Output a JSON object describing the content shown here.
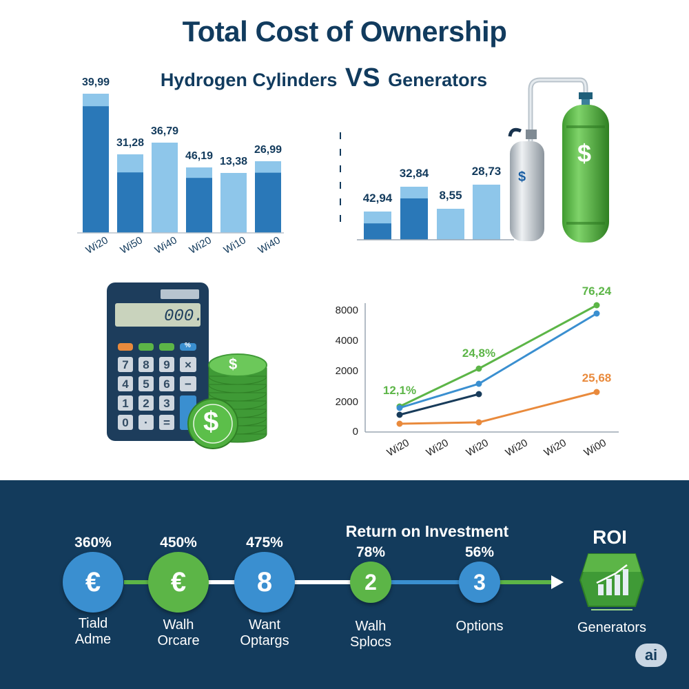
{
  "title": "Total Cost of Ownership",
  "subtitle": {
    "left": "Hydrogen Cylinders",
    "vs": "VS",
    "right": "Generators"
  },
  "colors": {
    "dark_blue": "#2a78b8",
    "light_blue": "#8ec6ea",
    "green": "#5cb547",
    "orange": "#e98a3c",
    "navy": "#133b5c",
    "line_dark": "#183b5a"
  },
  "icons": [
    "gas-cylinders-icon",
    "dollar-icon",
    "calculator-icon",
    "coin-stack-icon",
    "euro-icon",
    "chart-growth-icon"
  ],
  "calculator": {
    "display": "000.",
    "percent_key": "%"
  },
  "chart_data": [
    {
      "type": "bar",
      "categories": [
        "Wi20",
        "Wi50",
        "Wi40",
        "Wi20",
        "Wi10",
        "Wi40"
      ],
      "values": [
        39.99,
        31.28,
        36.79,
        46.19,
        13.38,
        26.99
      ],
      "data_labels": [
        "39,99",
        "31,28",
        "36,79",
        "46,19",
        "13,38",
        "26,99"
      ]
    },
    {
      "type": "bar",
      "categories": [
        "",
        "",
        "",
        ""
      ],
      "values": [
        42.94,
        32.84,
        8.55,
        28.73
      ],
      "data_labels": [
        "42,94",
        "32,84",
        "8,55",
        "28,73"
      ]
    },
    {
      "type": "line",
      "x": [
        "Wi20",
        "Wi20",
        "Wi20",
        "Wi20",
        "Wi20",
        "Wi00"
      ],
      "y_ticks": [
        "8000",
        "4000",
        "2000",
        "2000",
        "0"
      ],
      "annotations": [
        "12,1%",
        "24,8%",
        "76,24",
        "25,68"
      ]
    }
  ],
  "roi": {
    "title": "Return on Investment",
    "right_title": "ROI",
    "steps": [
      {
        "pct": "360%",
        "symbol": "€",
        "label": [
          "Tiald",
          "Adme"
        ]
      },
      {
        "pct": "450%",
        "symbol": "€",
        "label": [
          "Walh",
          "Orcare"
        ]
      },
      {
        "pct": "475%",
        "symbol": "8",
        "label": [
          "Want",
          "Optargs"
        ]
      },
      {
        "pct": "78%",
        "symbol": "2",
        "label": [
          "Walh",
          "Splocs"
        ]
      },
      {
        "pct": "56%",
        "symbol": "3",
        "label": [
          "Options"
        ]
      }
    ],
    "end_label": "Generators"
  },
  "badge": "ai"
}
